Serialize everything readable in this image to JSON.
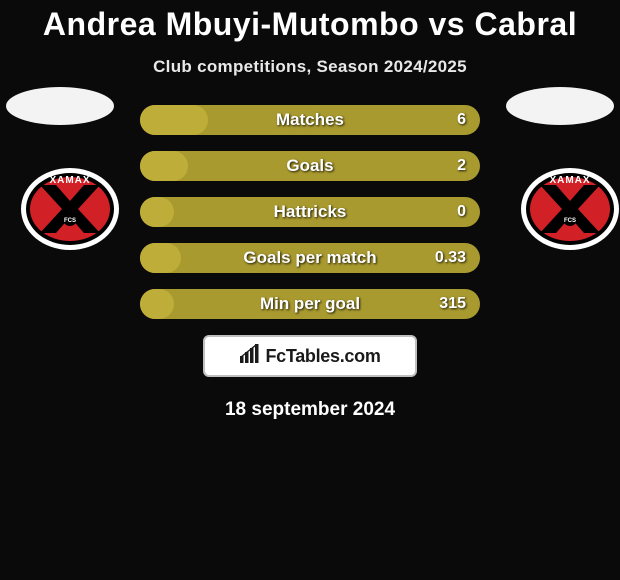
{
  "title": "Andrea Mbuyi-Mutombo vs Cabral",
  "subtitle": "Club competitions, Season 2024/2025",
  "date": "18 september 2024",
  "brand": "FcTables.com",
  "colors": {
    "page_bg": "#0a0a0a",
    "bar_base": "#a99a2f",
    "bar_highlight": "#bfad39",
    "text": "#ffffff",
    "logo_red": "#d22027",
    "logo_black": "#000000",
    "logo_white": "#ffffff"
  },
  "stats": [
    {
      "label": "Matches",
      "value": "6",
      "highlight_width": 20
    },
    {
      "label": "Goals",
      "value": "2",
      "highlight_width": 14
    },
    {
      "label": "Hattricks",
      "value": "0",
      "highlight_width": 10
    },
    {
      "label": "Goals per match",
      "value": "0.33",
      "highlight_width": 12
    },
    {
      "label": "Min per goal",
      "value": "315",
      "highlight_width": 10
    }
  ],
  "club": {
    "name": "Xamax",
    "label": "XAMAX"
  }
}
